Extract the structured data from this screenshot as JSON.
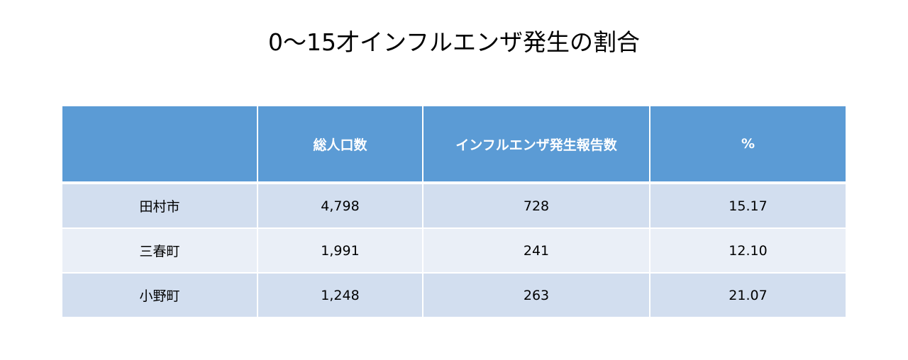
{
  "title": "0～15才インフルエンザ発生の割合",
  "table": {
    "headers": [
      "",
      "総人口数",
      "インフルエンザ発生報告数",
      "%"
    ],
    "rows": [
      [
        "田村市",
        "4,798",
        "728",
        "15.17"
      ],
      [
        "三春町",
        "1,991",
        "241",
        "12.10"
      ],
      [
        "小野町",
        "1,248",
        "263",
        "21.07"
      ]
    ]
  },
  "colors": {
    "header_bg": "#5b9bd5",
    "row_odd_bg": "#d2deef",
    "row_even_bg": "#eaeff7"
  }
}
